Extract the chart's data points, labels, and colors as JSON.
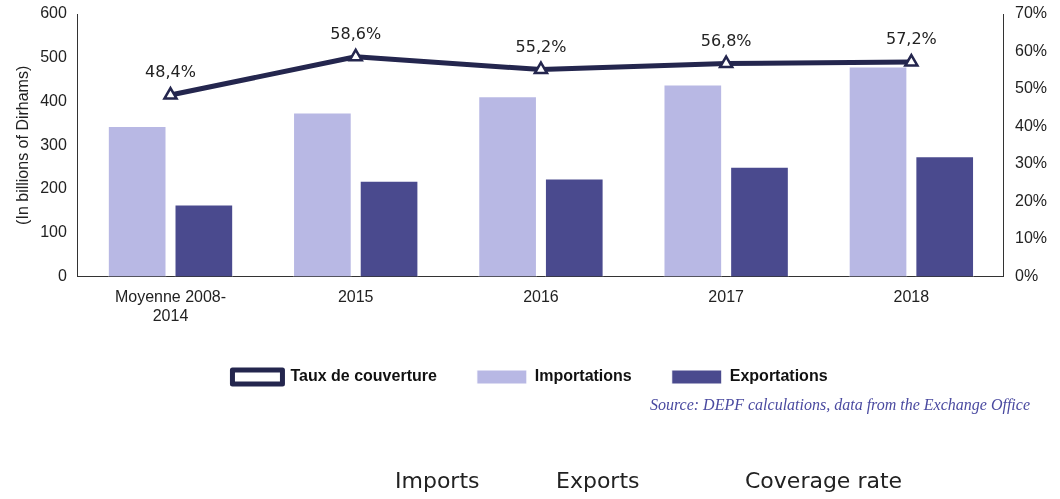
{
  "chart_data": {
    "type": "bar",
    "ylabel": "(In billions of Dirhams)",
    "categories": [
      "Moyenne 2008-2014",
      "2015",
      "2016",
      "2017",
      "2018"
    ],
    "series": [
      {
        "name": "Importations",
        "color": "#b8b8e4",
        "values": [
          344,
          375,
          412,
          439,
          480
        ]
      },
      {
        "name": "Exportations",
        "color": "#4a4a8e",
        "values": [
          165,
          219,
          224,
          251,
          275
        ]
      },
      {
        "name": "Taux de couverture",
        "type": "line",
        "axis": "y2",
        "color": "#24264e",
        "marker": "triangle",
        "values": [
          48.4,
          58.6,
          55.2,
          56.8,
          57.2
        ],
        "value_labels": [
          "48,4%",
          "58,6%",
          "55,2%",
          "56,8%",
          "57,2%"
        ]
      }
    ],
    "ylim": [
      0,
      600
    ],
    "yticks": [
      0,
      100,
      200,
      300,
      400,
      500,
      600
    ],
    "y2lim": [
      0,
      70
    ],
    "y2ticks": [
      {
        "value": 0,
        "label": "0%"
      },
      {
        "value": 10,
        "label": "10%"
      },
      {
        "value": 20,
        "label": "20%"
      },
      {
        "value": 30,
        "label": "30%"
      },
      {
        "value": 40,
        "label": "40%"
      },
      {
        "value": 50,
        "label": "50%"
      },
      {
        "value": 60,
        "label": "60%"
      },
      {
        "value": 70,
        "label": "70%"
      }
    ],
    "grid": false,
    "legend": "bottom",
    "annotations": [
      "Source: DEPF calculations, data from the Exchange Office",
      "Imports",
      "Exports",
      "Coverage rate"
    ]
  }
}
